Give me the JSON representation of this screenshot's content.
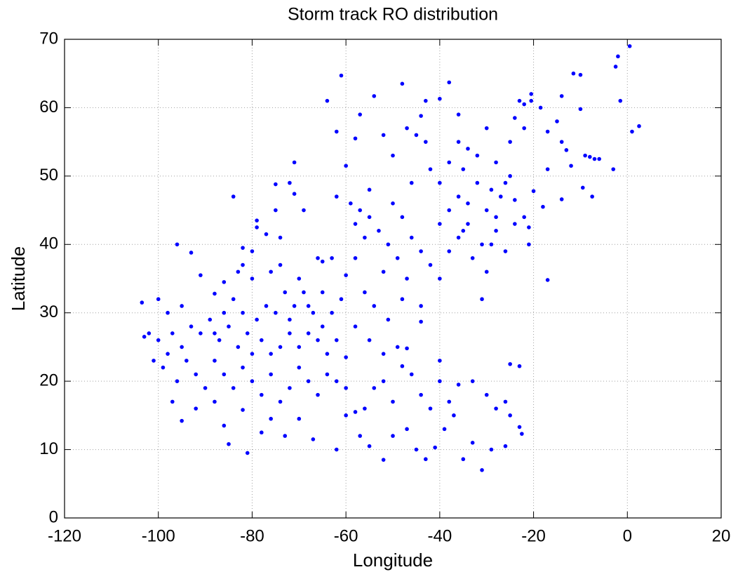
{
  "chart_data": {
    "type": "scatter",
    "title": "Storm track RO distribution",
    "x_label": "Longitude",
    "y_label": "Latitude",
    "xlim": [
      -120,
      20
    ],
    "ylim": [
      0,
      70
    ],
    "xticks": [
      -120,
      -100,
      -80,
      -60,
      -40,
      -20,
      0,
      20
    ],
    "yticks": [
      0,
      10,
      20,
      30,
      40,
      50,
      60,
      70
    ],
    "grid": true,
    "series": [
      {
        "color": "#0000ff",
        "x": [
          0.5,
          -2,
          -2.5,
          -1.5,
          1,
          2.5,
          -11.5,
          -10,
          -10,
          -9,
          -8,
          -7,
          -6,
          -3,
          -9.5,
          -7.5,
          -14,
          -18,
          -20,
          -21,
          -21,
          -17,
          -13,
          -12,
          -14,
          -14,
          -15,
          -17,
          -17,
          -18.5,
          -20.5,
          -20.5,
          -22,
          -23,
          -22,
          -24,
          -25,
          -25,
          -24,
          -26,
          -28,
          -29,
          -28,
          -29,
          -30,
          -31,
          -33,
          -35,
          -36,
          -35,
          -36,
          -36,
          -38,
          -40,
          -43,
          -44,
          -43,
          -45,
          -47,
          -48,
          -50,
          -52,
          -54,
          -57,
          -58,
          -61,
          -62,
          -64,
          -60,
          -62,
          -59,
          -57,
          -55,
          -53,
          -56,
          -58,
          -60,
          -63,
          -66,
          -69,
          -71,
          -71,
          -72,
          -75,
          -75,
          -74,
          -79,
          -79,
          -77,
          -80,
          -82,
          -84,
          -83,
          -82,
          -80,
          -76,
          -74,
          -70,
          -86,
          -88,
          -91,
          -93,
          -96,
          -103.5,
          -100,
          -98,
          -95,
          -101,
          -102,
          -103,
          -99,
          -97,
          -95,
          -92,
          -88,
          -86,
          -85,
          -81,
          -82,
          -78,
          -76,
          -73,
          -70,
          -67,
          -62,
          -60,
          -57,
          -55,
          -52,
          -50,
          -47,
          -45,
          -43,
          -41,
          -39,
          -37,
          -35,
          -33,
          -31,
          -29,
          -26,
          -23,
          -22.5,
          -25,
          -26,
          -25,
          -23,
          -28,
          -30,
          -33,
          -36,
          -38,
          -40,
          -40,
          -42,
          -44,
          -46,
          -48,
          -50,
          -52,
          -54,
          -56,
          -58,
          -60,
          -62,
          -64,
          -66,
          -68,
          -70,
          -72,
          -74,
          -76,
          -78,
          -80,
          -82,
          -84,
          -86,
          -88,
          -90,
          -92,
          -94,
          -96,
          -98,
          -100,
          -97,
          -95,
          -93,
          -91,
          -89,
          -87,
          -85,
          -83,
          -81,
          -79,
          -77,
          -75,
          -73,
          -71,
          -69,
          -67,
          -65,
          -63,
          -61,
          -66,
          -68,
          -70,
          -72,
          -74,
          -76,
          -78,
          -80,
          -82,
          -84,
          -86,
          -88,
          -64,
          -62,
          -60,
          -58,
          -55,
          -52,
          -49,
          -47,
          -54,
          -56,
          -51,
          -44,
          -44,
          -48,
          -58,
          -55,
          -50,
          -48,
          -46,
          -44,
          -42,
          -40,
          -38,
          -34,
          -32,
          -30,
          -28,
          -26,
          -24,
          -22,
          -27,
          -32,
          -30,
          -34,
          -38,
          -40,
          -42,
          -46,
          -49,
          -51,
          -52,
          -47,
          -40,
          -38,
          -36,
          -34,
          -31,
          -65,
          -68,
          -72,
          -65
        ],
        "values": [
          69,
          67.5,
          66,
          61,
          56.5,
          57.3,
          65,
          64.8,
          59.8,
          53,
          52.8,
          52.5,
          52.5,
          51,
          48.3,
          47,
          46.6,
          45.5,
          47.8,
          40,
          42.5,
          34.8,
          53.8,
          51.5,
          55,
          61.7,
          58,
          56.5,
          51,
          60,
          62,
          61,
          60.5,
          61,
          57,
          58.5,
          55,
          50,
          46.5,
          49,
          52,
          48,
          44,
          40,
          36,
          32,
          38,
          42,
          47,
          51,
          55,
          59,
          63.7,
          61.3,
          61,
          58.8,
          55,
          56,
          57,
          63.5,
          53,
          56,
          61.7,
          59,
          55.5,
          64.7,
          56.5,
          61,
          51.5,
          47,
          46,
          45,
          48,
          42,
          41,
          38,
          35.5,
          38,
          38,
          45,
          47.4,
          52,
          49,
          48.8,
          45,
          41,
          43.5,
          42.5,
          41.5,
          39,
          39.5,
          47,
          36,
          37,
          35,
          36,
          37,
          35,
          34.5,
          32.8,
          35.5,
          38.8,
          40,
          31.5,
          32,
          30,
          31,
          23,
          27,
          26.5,
          22,
          17,
          14.2,
          16,
          17,
          13.5,
          10.8,
          9.5,
          15.8,
          12.5,
          14.5,
          12,
          14.5,
          11.5,
          10,
          15,
          12,
          10.5,
          8.5,
          12,
          13,
          10,
          8.6,
          10.3,
          13,
          15,
          8.6,
          11,
          7,
          10,
          10.5,
          13.3,
          12.3,
          15,
          17,
          22.5,
          22.2,
          16,
          18,
          20,
          19.5,
          17,
          23,
          20,
          16,
          18,
          21,
          22.2,
          17,
          20,
          19,
          16,
          15.5,
          19,
          20,
          21,
          18,
          20,
          22,
          19,
          17,
          21,
          18,
          20,
          22,
          19,
          21,
          23,
          19,
          21,
          23,
          20,
          24,
          26,
          27,
          25,
          28,
          27,
          29,
          26,
          28,
          25,
          27,
          29,
          31,
          30,
          33,
          31,
          33,
          30,
          28,
          30,
          32,
          26,
          27,
          25,
          27,
          25,
          24,
          26,
          24,
          30,
          32,
          30,
          27,
          24,
          26,
          23.5,
          28,
          26,
          24,
          25,
          24.8,
          31,
          33,
          29,
          28.7,
          31,
          32,
          43,
          44,
          46,
          44,
          41,
          39,
          37,
          43,
          45,
          46,
          49,
          45,
          42,
          39,
          43,
          44,
          47,
          53,
          57,
          54,
          52,
          49,
          51,
          49,
          38,
          40,
          36,
          35,
          35,
          39,
          41,
          43,
          40,
          33,
          31,
          29,
          37.5
        ]
      }
    ]
  }
}
